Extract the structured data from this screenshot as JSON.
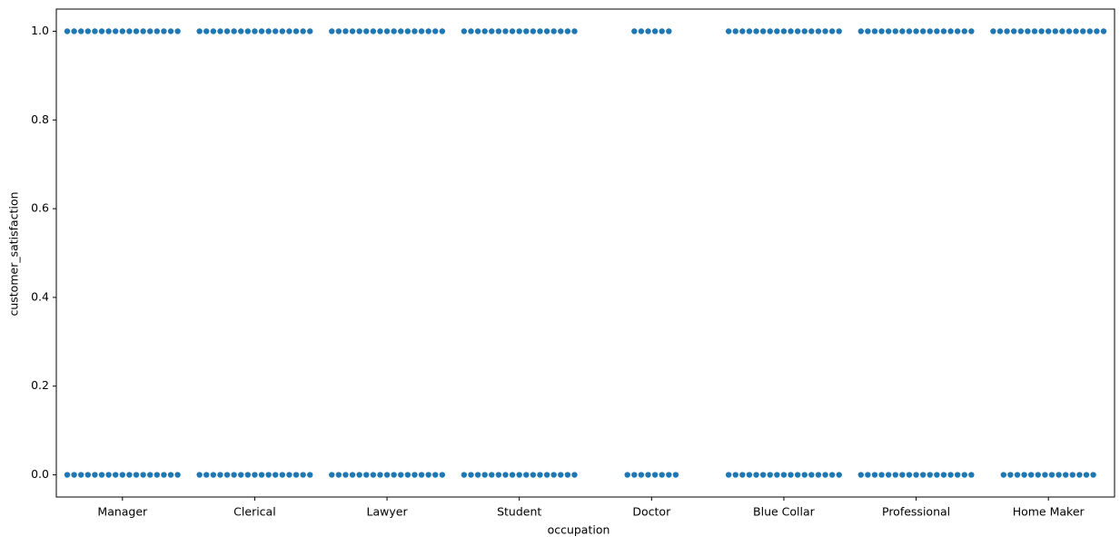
{
  "chart_data": {
    "type": "swarm",
    "x_label": "occupation",
    "y_label": "customer_satisfaction",
    "categories": [
      "Manager",
      "Clerical",
      "Lawyer",
      "Student",
      "Doctor",
      "Blue Collar",
      "Professional",
      "Home Maker"
    ],
    "color": "#1f77b4",
    "values": [
      [
        1,
        1,
        1,
        1,
        1,
        1,
        1,
        1,
        1,
        1,
        1,
        1,
        1,
        1,
        1,
        1,
        1,
        0,
        0,
        0,
        0,
        0,
        0,
        0,
        0,
        0,
        0,
        0,
        0,
        0,
        0,
        0,
        0,
        0
      ],
      [
        1,
        1,
        1,
        1,
        1,
        1,
        1,
        1,
        1,
        1,
        1,
        1,
        1,
        1,
        1,
        1,
        1,
        0,
        0,
        0,
        0,
        0,
        0,
        0,
        0,
        0,
        0,
        0,
        0,
        0,
        0,
        0,
        0,
        0
      ],
      [
        1,
        1,
        1,
        1,
        1,
        1,
        1,
        1,
        1,
        1,
        1,
        1,
        1,
        1,
        1,
        1,
        1,
        0,
        0,
        0,
        0,
        0,
        0,
        0,
        0,
        0,
        0,
        0,
        0,
        0,
        0,
        0,
        0,
        0
      ],
      [
        1,
        1,
        1,
        1,
        1,
        1,
        1,
        1,
        1,
        1,
        1,
        1,
        1,
        1,
        1,
        1,
        1,
        0,
        0,
        0,
        0,
        0,
        0,
        0,
        0,
        0,
        0,
        0,
        0,
        0,
        0,
        0,
        0,
        0
      ],
      [
        1,
        1,
        1,
        1,
        1,
        1,
        0,
        0,
        0,
        0,
        0,
        0,
        0,
        0
      ],
      [
        1,
        1,
        1,
        1,
        1,
        1,
        1,
        1,
        1,
        1,
        1,
        1,
        1,
        1,
        1,
        1,
        1,
        0,
        0,
        0,
        0,
        0,
        0,
        0,
        0,
        0,
        0,
        0,
        0,
        0,
        0,
        0,
        0,
        0
      ],
      [
        1,
        1,
        1,
        1,
        1,
        1,
        1,
        1,
        1,
        1,
        1,
        1,
        1,
        1,
        1,
        1,
        1,
        0,
        0,
        0,
        0,
        0,
        0,
        0,
        0,
        0,
        0,
        0,
        0,
        0,
        0,
        0,
        0,
        0
      ],
      [
        1,
        1,
        1,
        1,
        1,
        1,
        1,
        1,
        1,
        1,
        1,
        1,
        1,
        1,
        1,
        1,
        1,
        0,
        0,
        0,
        0,
        0,
        0,
        0,
        0,
        0,
        0,
        0,
        0,
        0,
        0
      ]
    ],
    "ylim": [
      -0.05,
      1.05
    ],
    "yticks": [
      {
        "value": 0,
        "label": "0.0"
      },
      0.2,
      0.4,
      0.6,
      0.8,
      {
        "value": 1,
        "label": "1.0"
      }
    ]
  }
}
